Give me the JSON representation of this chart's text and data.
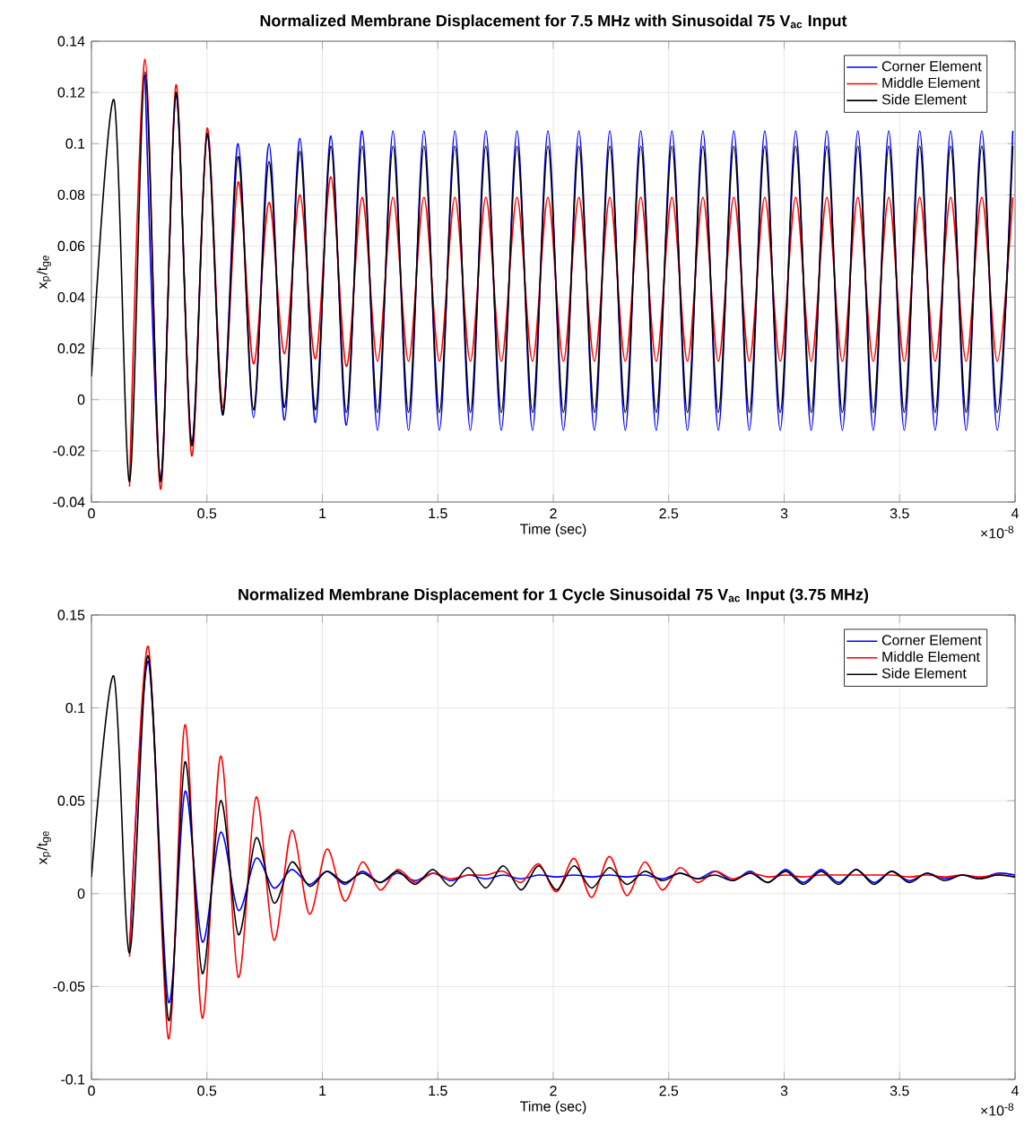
{
  "chart_data": [
    {
      "type": "line",
      "title": "Normalized Membrane Displacement for 7.5 MHz with Sinusoidal 75 V$_{ac}$ Input",
      "xlabel": "Time (sec)",
      "ylabel": "x$_{p}$/t$_{ge}$",
      "annotations": [
        "×10$^{-8}$"
      ],
      "grid": true,
      "legend": "top right",
      "xlim": [
        0,
        4
      ],
      "ylim": [
        -0.04,
        0.14
      ],
      "xticks": [
        0,
        0.5,
        1,
        1.5,
        2,
        2.5,
        3,
        3.5,
        4
      ],
      "yticks": [
        -0.04,
        -0.02,
        0,
        0.02,
        0.04,
        0.06,
        0.08,
        0.1,
        0.12,
        0.14
      ],
      "x": [
        0,
        0.098,
        0.165,
        0.232,
        0.299,
        0.366,
        0.434,
        0.501,
        0.568,
        0.635,
        0.702,
        0.769,
        0.836,
        0.903,
        0.97,
        1.037,
        1.104,
        1.172,
        1.239,
        1.306,
        1.373,
        1.44,
        1.507,
        1.574,
        1.641,
        1.708,
        1.775,
        1.843,
        1.91,
        1.977,
        2.044,
        2.111,
        2.178,
        2.245,
        2.312,
        2.379,
        2.446,
        2.514,
        2.581,
        2.648,
        2.715,
        2.782,
        2.849,
        2.916,
        2.983,
        3.05,
        3.117,
        3.185,
        3.252,
        3.319,
        3.386,
        3.453,
        3.52,
        3.587,
        3.654,
        3.721,
        3.788,
        3.856,
        3.923,
        3.99
      ],
      "series": [
        {
          "name": "Corner Element",
          "color": "#0000ff",
          "values": [
            null,
            null,
            null,
            0.127,
            -0.031,
            0.119,
            -0.017,
            0.104,
            -0.005,
            0.1,
            -0.007,
            0.1,
            -0.008,
            0.102,
            -0.009,
            0.103,
            -0.01,
            0.105,
            -0.012,
            0.105,
            -0.012,
            0.105,
            -0.012,
            0.105,
            -0.012,
            0.105,
            -0.012,
            0.105,
            -0.012,
            0.105,
            -0.012,
            0.105,
            -0.012,
            0.105,
            -0.012,
            0.105,
            -0.012,
            0.105,
            -0.012,
            0.105,
            -0.012,
            0.105,
            -0.012,
            0.105,
            -0.012,
            0.105,
            -0.012,
            0.105,
            -0.012,
            0.105,
            -0.012,
            0.105,
            -0.012,
            0.105,
            -0.012,
            0.105,
            -0.012,
            0.105,
            -0.012,
            0.105
          ]
        },
        {
          "name": "Middle Element",
          "color": "#ff0000",
          "values": [
            null,
            null,
            -0.034,
            0.133,
            -0.035,
            0.123,
            -0.022,
            0.106,
            -0.003,
            0.085,
            0.014,
            0.077,
            0.018,
            0.08,
            0.016,
            0.087,
            0.013,
            0.079,
            0.015,
            0.079,
            0.015,
            0.079,
            0.015,
            0.079,
            0.015,
            0.079,
            0.015,
            0.079,
            0.015,
            0.079,
            0.015,
            0.079,
            0.015,
            0.079,
            0.015,
            0.079,
            0.015,
            0.079,
            0.015,
            0.079,
            0.015,
            0.079,
            0.015,
            0.079,
            0.015,
            0.079,
            0.015,
            0.079,
            0.015,
            0.079,
            0.015,
            0.079,
            0.015,
            0.079,
            0.015,
            0.079,
            0.015,
            0.079,
            0.015,
            0.079
          ]
        },
        {
          "name": "Side Element",
          "color": "#000000",
          "values": [
            0.009,
            0.117,
            -0.032,
            0.128,
            -0.032,
            0.12,
            -0.018,
            0.104,
            -0.006,
            0.095,
            -0.004,
            0.093,
            -0.003,
            0.097,
            -0.004,
            0.099,
            -0.005,
            0.099,
            -0.005,
            0.099,
            -0.005,
            0.099,
            -0.005,
            0.099,
            -0.005,
            0.099,
            -0.005,
            0.099,
            -0.005,
            0.099,
            -0.005,
            0.099,
            -0.005,
            0.099,
            -0.005,
            0.099,
            -0.005,
            0.099,
            -0.005,
            0.099,
            -0.005,
            0.099,
            -0.005,
            0.099,
            -0.005,
            0.099,
            -0.005,
            0.099,
            -0.005,
            0.099,
            -0.005,
            0.099,
            -0.005,
            0.099,
            -0.005,
            0.099,
            -0.005,
            0.099,
            -0.005,
            0.099
          ]
        }
      ]
    },
    {
      "type": "line",
      "title": "Normalized Membrane Displacement for 1 Cycle Sinusoidal 75 V$_{ac}$ Input (3.75 MHz)",
      "xlabel": "Time (sec)",
      "ylabel": "x$_{p}$/t$_{ge}$",
      "annotations": [
        "×10$^{-8}$"
      ],
      "grid": true,
      "legend": "top right",
      "xlim": [
        0,
        4
      ],
      "ylim": [
        -0.1,
        0.15
      ],
      "xticks": [
        0,
        0.5,
        1,
        1.5,
        2,
        2.5,
        3,
        3.5,
        4
      ],
      "yticks": [
        -0.1,
        -0.05,
        0,
        0.05,
        0.1,
        0.15
      ],
      "x": [
        0,
        0.097,
        0.165,
        0.246,
        0.333,
        0.405,
        0.48,
        0.559,
        0.636,
        0.713,
        0.79,
        0.867,
        0.944,
        1.02,
        1.097,
        1.173,
        1.25,
        1.326,
        1.402,
        1.479,
        1.555,
        1.632,
        1.708,
        1.784,
        1.861,
        1.937,
        2.014,
        2.09,
        2.166,
        2.243,
        2.319,
        2.396,
        2.472,
        2.548,
        2.625,
        2.701,
        2.778,
        2.854,
        2.93,
        3.007,
        3.083,
        3.16,
        3.236,
        3.312,
        3.389,
        3.465,
        3.542,
        3.618,
        3.694,
        3.771,
        3.847,
        3.924,
        4.0
      ],
      "series": [
        {
          "name": "Corner Element",
          "color": "#0000ff",
          "values": [
            null,
            null,
            -0.03,
            0.125,
            -0.058,
            0.055,
            -0.026,
            0.033,
            -0.009,
            0.019,
            0.003,
            0.013,
            0.005,
            0.012,
            0.005,
            0.012,
            0.006,
            0.011,
            0.007,
            0.011,
            0.007,
            0.01,
            0.008,
            0.01,
            0.008,
            0.01,
            0.009,
            0.01,
            0.009,
            0.01,
            0.009,
            0.01,
            0.008,
            0.011,
            0.008,
            0.012,
            0.007,
            0.012,
            0.006,
            0.013,
            0.006,
            0.013,
            0.006,
            0.013,
            0.006,
            0.012,
            0.007,
            0.011,
            0.008,
            0.01,
            0.008,
            0.011,
            0.01
          ]
        },
        {
          "name": "Middle Element",
          "color": "#ff0000",
          "values": [
            null,
            null,
            -0.034,
            0.133,
            -0.078,
            0.091,
            -0.067,
            0.074,
            -0.045,
            0.052,
            -0.025,
            0.034,
            -0.011,
            0.024,
            -0.004,
            0.017,
            0.002,
            0.013,
            0.006,
            0.011,
            0.008,
            0.01,
            0.01,
            0.012,
            0.006,
            0.016,
            0.001,
            0.019,
            -0.002,
            0.02,
            -0.001,
            0.017,
            0.002,
            0.014,
            0.006,
            0.012,
            0.008,
            0.011,
            0.009,
            0.01,
            0.009,
            0.01,
            0.01,
            0.01,
            0.01,
            0.01,
            0.009,
            0.01,
            0.009,
            0.01,
            0.009,
            0.01,
            0.009
          ]
        },
        {
          "name": "Side Element",
          "color": "#000000",
          "values": [
            0.009,
            0.117,
            -0.032,
            0.128,
            -0.068,
            0.071,
            -0.043,
            0.05,
            -0.022,
            0.03,
            -0.005,
            0.017,
            0.004,
            0.012,
            0.006,
            0.011,
            0.006,
            0.012,
            0.005,
            0.013,
            0.004,
            0.014,
            0.003,
            0.015,
            0.002,
            0.015,
            0.002,
            0.015,
            0.003,
            0.014,
            0.005,
            0.012,
            0.007,
            0.011,
            0.008,
            0.01,
            0.007,
            0.011,
            0.006,
            0.012,
            0.005,
            0.012,
            0.005,
            0.013,
            0.005,
            0.012,
            0.006,
            0.011,
            0.007,
            0.01,
            0.008,
            0.01,
            0.009
          ]
        }
      ]
    }
  ]
}
